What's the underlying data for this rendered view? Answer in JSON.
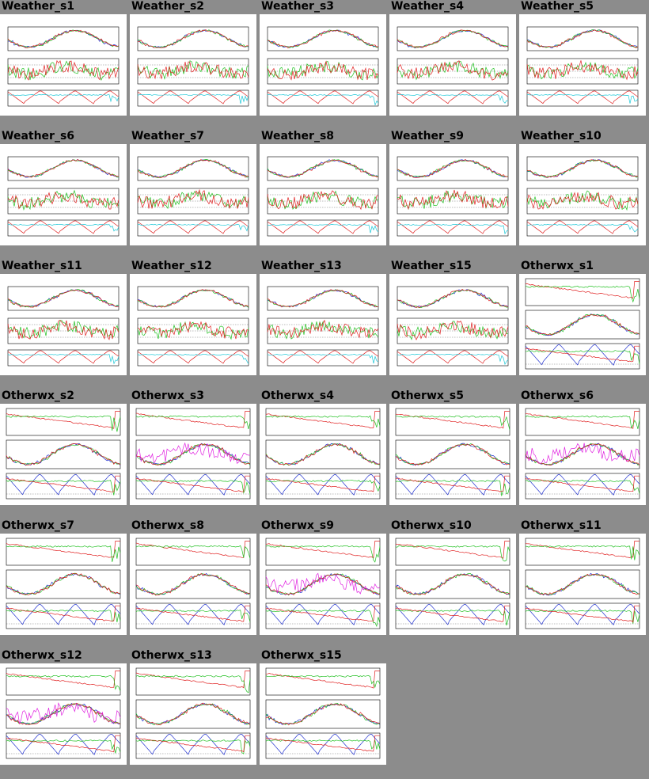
{
  "page": {
    "background": "#8c8c8c"
  },
  "tiles": [
    {
      "title": "Weather_s1",
      "kind": "weather"
    },
    {
      "title": "Weather_s2",
      "kind": "weather"
    },
    {
      "title": "Weather_s3",
      "kind": "weather"
    },
    {
      "title": "Weather_s4",
      "kind": "weather"
    },
    {
      "title": "Weather_s5",
      "kind": "weather"
    },
    {
      "title": "Weather_s6",
      "kind": "weather"
    },
    {
      "title": "Weather_s7",
      "kind": "weather"
    },
    {
      "title": "Weather_s8",
      "kind": "weather"
    },
    {
      "title": "Weather_s9",
      "kind": "weather"
    },
    {
      "title": "Weather_s10",
      "kind": "weather"
    },
    {
      "title": "Weather_s11",
      "kind": "weather"
    },
    {
      "title": "Weather_s12",
      "kind": "weather"
    },
    {
      "title": "Weather_s13",
      "kind": "weather"
    },
    {
      "title": "Weather_s15",
      "kind": "weather"
    },
    {
      "title": "Otherwx_s1",
      "kind": "otherwx"
    },
    {
      "title": "Otherwx_s2",
      "kind": "otherwx"
    },
    {
      "title": "Otherwx_s3",
      "kind": "otherwx"
    },
    {
      "title": "Otherwx_s4",
      "kind": "otherwx"
    },
    {
      "title": "Otherwx_s5",
      "kind": "otherwx"
    },
    {
      "title": "Otherwx_s6",
      "kind": "otherwx"
    },
    {
      "title": "Otherwx_s7",
      "kind": "otherwx"
    },
    {
      "title": "Otherwx_s8",
      "kind": "otherwx"
    },
    {
      "title": "Otherwx_s9",
      "kind": "otherwx"
    },
    {
      "title": "Otherwx_s10",
      "kind": "otherwx"
    },
    {
      "title": "Otherwx_s11",
      "kind": "otherwx"
    },
    {
      "title": "Otherwx_s12",
      "kind": "otherwx"
    },
    {
      "title": "Otherwx_s13",
      "kind": "otherwx"
    },
    {
      "title": "Otherwx_s15",
      "kind": "otherwx"
    }
  ],
  "colors": {
    "red": "#e02020",
    "green": "#20c020",
    "blue": "#2030d0",
    "cyan": "#20c8d8",
    "magenta": "#e020e0",
    "frame": "#000000"
  }
}
